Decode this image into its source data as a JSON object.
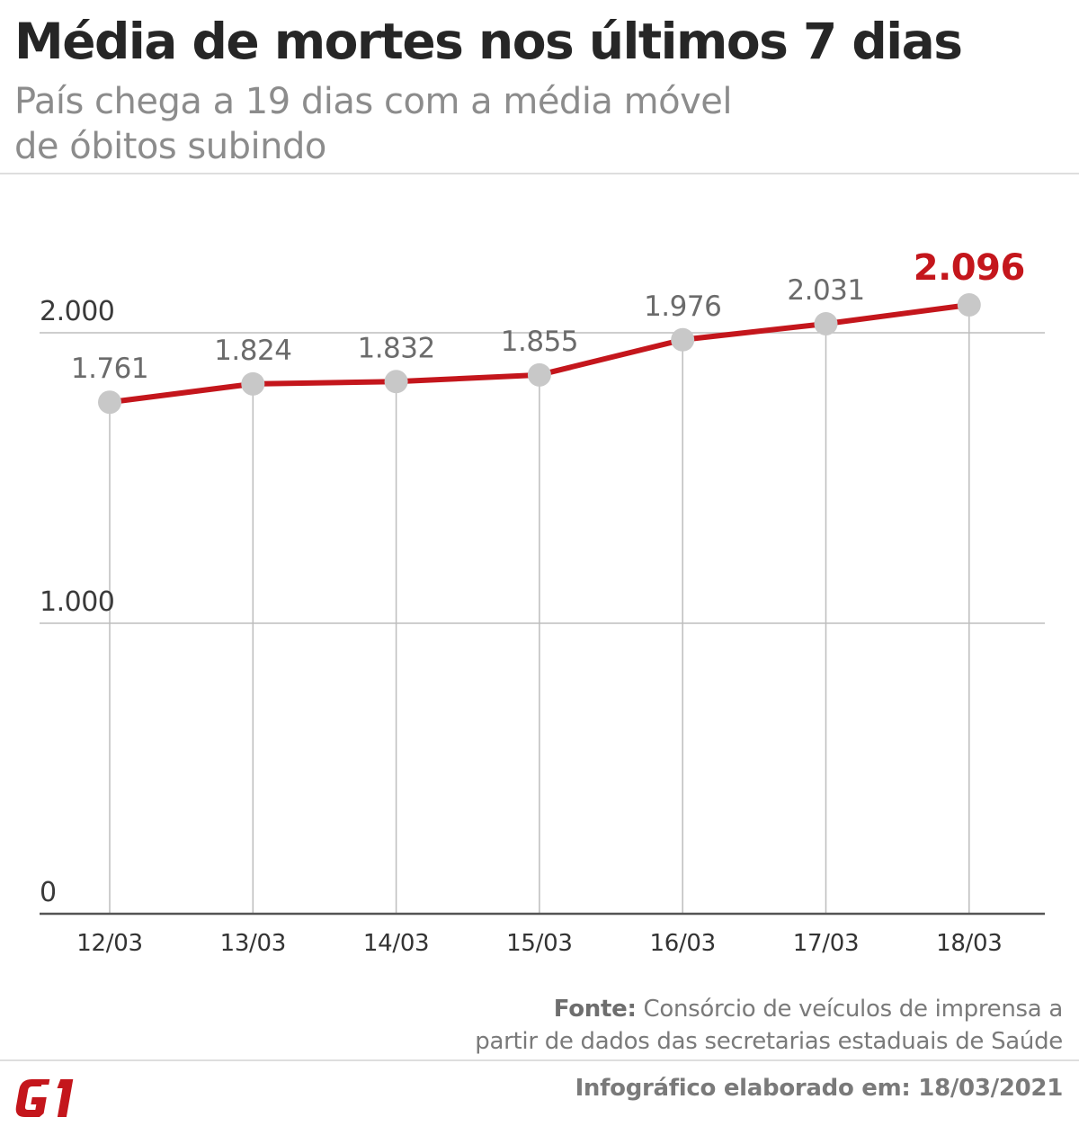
{
  "header": {
    "title": "Média de mortes nos últimos 7 dias",
    "subtitle_line1": "País chega a 19 dias com a média móvel",
    "subtitle_line2": "de óbitos subindo"
  },
  "chart_data": {
    "type": "line",
    "title": "Média de mortes nos últimos 7 dias",
    "categories": [
      "12/03",
      "13/03",
      "14/03",
      "15/03",
      "16/03",
      "17/03",
      "18/03"
    ],
    "values": [
      1761,
      1824,
      1832,
      1855,
      1976,
      2031,
      2096
    ],
    "value_labels": [
      "1.761",
      "1.824",
      "1.832",
      "1.855",
      "1.976",
      "2.031",
      "2.096"
    ],
    "ylim": [
      0,
      2000
    ],
    "yticks": [
      0,
      1000,
      2000
    ],
    "ytick_labels": [
      "0",
      "1.000",
      "2.000"
    ],
    "xlabel": "",
    "ylabel": "",
    "grid": true,
    "highlight_last": true,
    "colors": {
      "line": "#c4161c",
      "marker": "#c8c8c8",
      "highlight_label": "#c4161c",
      "label": "#6b6b6b",
      "grid": "#bdbdbd",
      "axis": "#555555"
    }
  },
  "footer": {
    "source_label": "Fonte:",
    "source_line1": "Consórcio de veículos de imprensa a",
    "source_line2": "partir de dados das secretarias estaduais de Saúde",
    "credit": "Infográfico elaborado em: 18/03/2021",
    "logo_text": "G1",
    "logo_color": "#c4161c"
  }
}
